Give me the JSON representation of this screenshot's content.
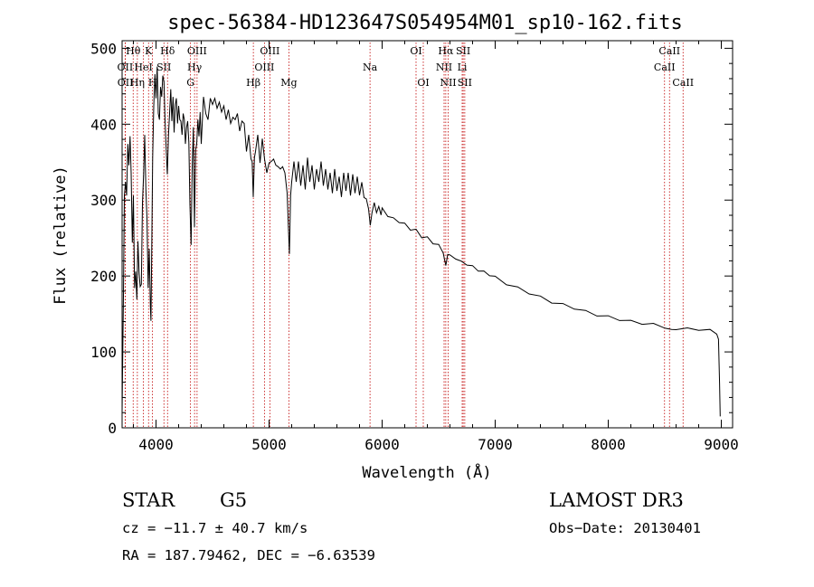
{
  "chart_data": {
    "type": "line",
    "title": "spec-56384-HD123647S054954M01_sp10-162.fits",
    "xlabel": "Wavelength (Å)",
    "ylabel": "Flux (relative)",
    "xlim": [
      3700,
      9100
    ],
    "ylim": [
      0,
      510
    ],
    "xticks": [
      4000,
      5000,
      6000,
      7000,
      8000,
      9000
    ],
    "yticks": [
      0,
      100,
      200,
      300,
      400,
      500
    ],
    "series": [
      {
        "name": "spectrum",
        "points": [
          [
            3700,
            20
          ],
          [
            3705,
            80
          ],
          [
            3712,
            180
          ],
          [
            3720,
            300
          ],
          [
            3730,
            330
          ],
          [
            3740,
            300
          ],
          [
            3750,
            380
          ],
          [
            3760,
            340
          ],
          [
            3770,
            390
          ],
          [
            3780,
            330
          ],
          [
            3790,
            250
          ],
          [
            3800,
            300
          ],
          [
            3810,
            190
          ],
          [
            3820,
            200
          ],
          [
            3830,
            175
          ],
          [
            3840,
            240
          ],
          [
            3850,
            210
          ],
          [
            3860,
            180
          ],
          [
            3870,
            195
          ],
          [
            3880,
            290
          ],
          [
            3890,
            340
          ],
          [
            3900,
            380
          ],
          [
            3910,
            320
          ],
          [
            3920,
            270
          ],
          [
            3930,
            190
          ],
          [
            3940,
            230
          ],
          [
            3950,
            165
          ],
          [
            3955,
            135
          ],
          [
            3960,
            210
          ],
          [
            3970,
            350
          ],
          [
            3980,
            430
          ],
          [
            3990,
            460
          ],
          [
            4000,
            440
          ],
          [
            4010,
            470
          ],
          [
            4020,
            420
          ],
          [
            4030,
            400
          ],
          [
            4040,
            455
          ],
          [
            4050,
            430
          ],
          [
            4060,
            470
          ],
          [
            4070,
            450
          ],
          [
            4080,
            410
          ],
          [
            4090,
            360
          ],
          [
            4100,
            340
          ],
          [
            4110,
            380
          ],
          [
            4120,
            420
          ],
          [
            4130,
            440
          ],
          [
            4140,
            410
          ],
          [
            4150,
            430
          ],
          [
            4160,
            395
          ],
          [
            4170,
            420
          ],
          [
            4180,
            440
          ],
          [
            4190,
            395
          ],
          [
            4200,
            430
          ],
          [
            4210,
            400
          ],
          [
            4220,
            410
          ],
          [
            4230,
            380
          ],
          [
            4240,
            420
          ],
          [
            4250,
            400
          ],
          [
            4260,
            380
          ],
          [
            4270,
            390
          ],
          [
            4280,
            410
          ],
          [
            4290,
            370
          ],
          [
            4300,
            300
          ],
          [
            4310,
            235
          ],
          [
            4320,
            350
          ],
          [
            4330,
            390
          ],
          [
            4340,
            270
          ],
          [
            4350,
            360
          ],
          [
            4360,
            380
          ],
          [
            4370,
            400
          ],
          [
            4380,
            390
          ],
          [
            4390,
            410
          ],
          [
            4400,
            380
          ],
          [
            4420,
            430
          ],
          [
            4440,
            420
          ],
          [
            4460,
            400
          ],
          [
            4480,
            440
          ],
          [
            4500,
            420
          ],
          [
            4520,
            440
          ],
          [
            4540,
            415
          ],
          [
            4560,
            435
          ],
          [
            4580,
            410
          ],
          [
            4600,
            430
          ],
          [
            4620,
            400
          ],
          [
            4640,
            425
          ],
          [
            4660,
            395
          ],
          [
            4680,
            415
          ],
          [
            4700,
            400
          ],
          [
            4720,
            420
          ],
          [
            4740,
            385
          ],
          [
            4760,
            410
          ],
          [
            4780,
            395
          ],
          [
            4800,
            370
          ],
          [
            4820,
            380
          ],
          [
            4840,
            360
          ],
          [
            4850,
            345
          ],
          [
            4860,
            310
          ],
          [
            4870,
            350
          ],
          [
            4880,
            370
          ],
          [
            4900,
            380
          ],
          [
            4920,
            355
          ],
          [
            4940,
            375
          ],
          [
            4960,
            360
          ],
          [
            4980,
            330
          ],
          [
            5000,
            355
          ],
          [
            5020,
            345
          ],
          [
            5040,
            360
          ],
          [
            5060,
            340
          ],
          [
            5080,
            350
          ],
          [
            5100,
            335
          ],
          [
            5120,
            350
          ],
          [
            5140,
            330
          ],
          [
            5160,
            315
          ],
          [
            5170,
            260
          ],
          [
            5180,
            235
          ],
          [
            5190,
            300
          ],
          [
            5200,
            330
          ],
          [
            5220,
            345
          ],
          [
            5240,
            330
          ],
          [
            5260,
            345
          ],
          [
            5280,
            325
          ],
          [
            5300,
            340
          ],
          [
            5320,
            320
          ],
          [
            5340,
            350
          ],
          [
            5360,
            330
          ],
          [
            5380,
            340
          ],
          [
            5400,
            320
          ],
          [
            5420,
            335
          ],
          [
            5440,
            330
          ],
          [
            5460,
            345
          ],
          [
            5480,
            325
          ],
          [
            5500,
            335
          ],
          [
            5520,
            320
          ],
          [
            5540,
            330
          ],
          [
            5560,
            315
          ],
          [
            5580,
            335
          ],
          [
            5600,
            318
          ],
          [
            5620,
            325
          ],
          [
            5640,
            310
          ],
          [
            5660,
            330
          ],
          [
            5680,
            318
          ],
          [
            5700,
            330
          ],
          [
            5720,
            312
          ],
          [
            5740,
            328
          ],
          [
            5760,
            315
          ],
          [
            5780,
            325
          ],
          [
            5800,
            308
          ],
          [
            5820,
            322
          ],
          [
            5840,
            305
          ],
          [
            5860,
            300
          ],
          [
            5880,
            290
          ],
          [
            5895,
            265
          ],
          [
            5910,
            285
          ],
          [
            5930,
            295
          ],
          [
            5950,
            285
          ],
          [
            5970,
            290
          ],
          [
            5990,
            282
          ],
          [
            6000,
            288
          ],
          [
            6050,
            280
          ],
          [
            6100,
            275
          ],
          [
            6150,
            272
          ],
          [
            6200,
            268
          ],
          [
            6250,
            262
          ],
          [
            6300,
            260
          ],
          [
            6350,
            252
          ],
          [
            6400,
            250
          ],
          [
            6450,
            244
          ],
          [
            6500,
            240
          ],
          [
            6540,
            232
          ],
          [
            6563,
            212
          ],
          [
            6580,
            230
          ],
          [
            6600,
            226
          ],
          [
            6650,
            224
          ],
          [
            6700,
            218
          ],
          [
            6750,
            216
          ],
          [
            6800,
            212
          ],
          [
            6850,
            208
          ],
          [
            6900,
            205
          ],
          [
            6950,
            202
          ],
          [
            7000,
            198
          ],
          [
            7100,
            190
          ],
          [
            7200,
            184
          ],
          [
            7300,
            178
          ],
          [
            7400,
            172
          ],
          [
            7500,
            166
          ],
          [
            7600,
            162
          ],
          [
            7700,
            158
          ],
          [
            7800,
            153
          ],
          [
            7900,
            149
          ],
          [
            8000,
            146
          ],
          [
            8100,
            143
          ],
          [
            8200,
            140
          ],
          [
            8300,
            138
          ],
          [
            8400,
            136
          ],
          [
            8500,
            133
          ],
          [
            8560,
            128
          ],
          [
            8600,
            131
          ],
          [
            8700,
            130
          ],
          [
            8800,
            130
          ],
          [
            8900,
            128
          ],
          [
            8960,
            125
          ],
          [
            8975,
            115
          ],
          [
            8985,
            60
          ],
          [
            8990,
            15
          ]
        ]
      }
    ],
    "line_markers": [
      {
        "label": "Hθ",
        "wavelength": 3798,
        "row": 0
      },
      {
        "label": "OII",
        "wavelength": 3727,
        "row": 1
      },
      {
        "label": "OII",
        "wavelength": 3729,
        "row": 2
      },
      {
        "label": "HeI",
        "wavelength": 3889,
        "row": 1
      },
      {
        "label": "Hη",
        "wavelength": 3835,
        "row": 2
      },
      {
        "label": "K",
        "wavelength": 3934,
        "row": 0
      },
      {
        "label": "H",
        "wavelength": 3969,
        "row": 2
      },
      {
        "label": "Hδ",
        "wavelength": 4102,
        "row": 0
      },
      {
        "label": "SII",
        "wavelength": 4070,
        "row": 1
      },
      {
        "label": "OIII",
        "wavelength": 4363,
        "row": 0
      },
      {
        "label": "Hγ",
        "wavelength": 4341,
        "row": 1
      },
      {
        "label": "G",
        "wavelength": 4305,
        "row": 2
      },
      {
        "label": "Hβ",
        "wavelength": 4861,
        "row": 2
      },
      {
        "label": "OIII",
        "wavelength": 5007,
        "row": 0
      },
      {
        "label": "OIII",
        "wavelength": 4959,
        "row": 1
      },
      {
        "label": "Mg",
        "wavelength": 5175,
        "row": 2
      },
      {
        "label": "Na",
        "wavelength": 5893,
        "row": 1
      },
      {
        "label": "OI",
        "wavelength": 6300,
        "row": 0
      },
      {
        "label": "OI",
        "wavelength": 6364,
        "row": 2
      },
      {
        "label": "Hα",
        "wavelength": 6563,
        "row": 0
      },
      {
        "label": "NII",
        "wavelength": 6548,
        "row": 1
      },
      {
        "label": "NII",
        "wavelength": 6584,
        "row": 2
      },
      {
        "label": "SII",
        "wavelength": 6717,
        "row": 0
      },
      {
        "label": "Li",
        "wavelength": 6708,
        "row": 1
      },
      {
        "label": "SII",
        "wavelength": 6731,
        "row": 2
      },
      {
        "label": "CaII",
        "wavelength": 8542,
        "row": 0
      },
      {
        "label": "CaII",
        "wavelength": 8498,
        "row": 1
      },
      {
        "label": "CaII",
        "wavelength": 8662,
        "row": 2
      }
    ],
    "colors": {
      "spectrum": "#000000",
      "markers": "#c00000",
      "axes": "#000000"
    }
  },
  "footer": {
    "object_class": "STAR",
    "subclass": "G5",
    "survey": "LAMOST DR3",
    "cz": "cz = −11.7 ± 40.7 km/s",
    "obs_date": "Obs−Date: 20130401",
    "coords": "RA = 187.79462, DEC =  −6.63539"
  }
}
